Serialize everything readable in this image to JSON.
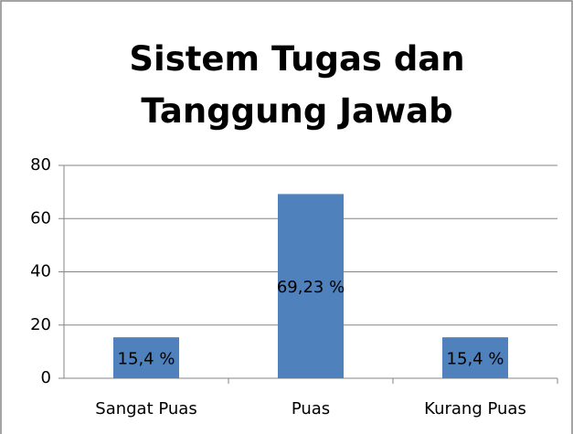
{
  "chart_data": {
    "type": "bar",
    "title": "Sistem Tugas dan Tanggung Jawab",
    "categories": [
      "Sangat Puas",
      "Puas",
      "Kurang Puas"
    ],
    "values": [
      15.4,
      69.23,
      15.4
    ],
    "value_labels": [
      "15,4 %",
      "69,23 %",
      "15,4 %"
    ],
    "color": "#4f81bd",
    "ylim": [
      0,
      80
    ],
    "yticks": [
      0,
      20,
      40,
      60,
      80
    ],
    "grid": true
  }
}
